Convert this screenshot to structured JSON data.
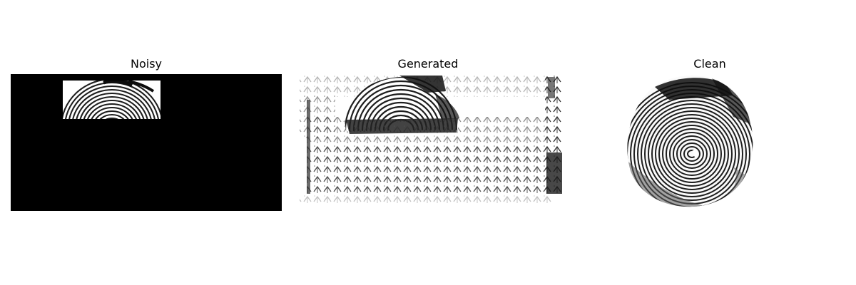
{
  "panels": [
    {
      "title": "Noisy",
      "image": "fingerprint-masked-image"
    },
    {
      "title": "Generated",
      "image": "fingerprint-generated-image"
    },
    {
      "title": "Clean",
      "image": "fingerprint-clean-image"
    }
  ],
  "colors": {
    "background": "#ffffff",
    "mask": "#000000",
    "ridge": "#1e1e1e",
    "ridge_dark": "#0d0d0d",
    "gray_region": "#5a5a5a",
    "texture": "#2b2b2b"
  }
}
